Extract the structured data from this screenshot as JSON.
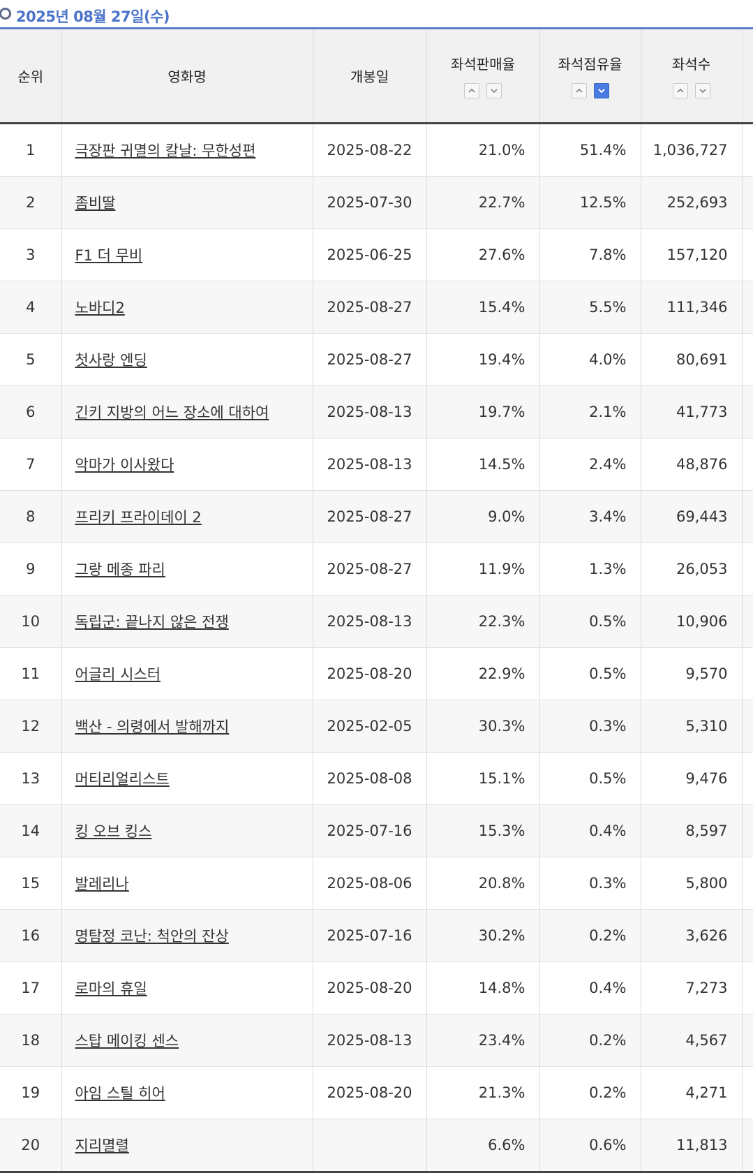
{
  "header": {
    "date": "2025년 08월 27일(수)"
  },
  "columns": {
    "rank": "순위",
    "title": "영화명",
    "open_date": "개봉일",
    "seat_sales_rate": "좌석판매율",
    "seat_share": "좌석점유율",
    "seats": "좌석수"
  },
  "sort_state": {
    "active_column": "seat_share",
    "active_direction": "desc"
  },
  "colors": {
    "accent": "#4a74c9",
    "active_sort": "#4a7be0"
  },
  "rows": [
    {
      "rank": "1",
      "title": "극장판 귀멸의 칼날: 무한성편",
      "open_date": "2025-08-22",
      "sales": "21.0%",
      "share": "51.4%",
      "seats": "1,036,727"
    },
    {
      "rank": "2",
      "title": "좀비딸",
      "open_date": "2025-07-30",
      "sales": "22.7%",
      "share": "12.5%",
      "seats": "252,693"
    },
    {
      "rank": "3",
      "title": "F1 더 무비",
      "open_date": "2025-06-25",
      "sales": "27.6%",
      "share": "7.8%",
      "seats": "157,120"
    },
    {
      "rank": "4",
      "title": "노바디2",
      "open_date": "2025-08-27",
      "sales": "15.4%",
      "share": "5.5%",
      "seats": "111,346"
    },
    {
      "rank": "5",
      "title": "첫사랑 엔딩",
      "open_date": "2025-08-27",
      "sales": "19.4%",
      "share": "4.0%",
      "seats": "80,691"
    },
    {
      "rank": "6",
      "title": "긴키 지방의 어느 장소에 대하여",
      "open_date": "2025-08-13",
      "sales": "19.7%",
      "share": "2.1%",
      "seats": "41,773"
    },
    {
      "rank": "7",
      "title": "악마가 이사왔다",
      "open_date": "2025-08-13",
      "sales": "14.5%",
      "share": "2.4%",
      "seats": "48,876"
    },
    {
      "rank": "8",
      "title": "프리키 프라이데이 2",
      "open_date": "2025-08-27",
      "sales": "9.0%",
      "share": "3.4%",
      "seats": "69,443"
    },
    {
      "rank": "9",
      "title": "그랑 메종 파리",
      "open_date": "2025-08-27",
      "sales": "11.9%",
      "share": "1.3%",
      "seats": "26,053"
    },
    {
      "rank": "10",
      "title": "독립군: 끝나지 않은 전쟁",
      "open_date": "2025-08-13",
      "sales": "22.3%",
      "share": "0.5%",
      "seats": "10,906"
    },
    {
      "rank": "11",
      "title": "어글리 시스터",
      "open_date": "2025-08-20",
      "sales": "22.9%",
      "share": "0.5%",
      "seats": "9,570"
    },
    {
      "rank": "12",
      "title": "백산 - 의령에서 발해까지",
      "open_date": "2025-02-05",
      "sales": "30.3%",
      "share": "0.3%",
      "seats": "5,310"
    },
    {
      "rank": "13",
      "title": "머티리얼리스트",
      "open_date": "2025-08-08",
      "sales": "15.1%",
      "share": "0.5%",
      "seats": "9,476"
    },
    {
      "rank": "14",
      "title": "킹 오브 킹스",
      "open_date": "2025-07-16",
      "sales": "15.3%",
      "share": "0.4%",
      "seats": "8,597"
    },
    {
      "rank": "15",
      "title": "발레리나",
      "open_date": "2025-08-06",
      "sales": "20.8%",
      "share": "0.3%",
      "seats": "5,800"
    },
    {
      "rank": "16",
      "title": "명탐정 코난: 척안의 잔상",
      "open_date": "2025-07-16",
      "sales": "30.2%",
      "share": "0.2%",
      "seats": "3,626"
    },
    {
      "rank": "17",
      "title": "로마의 휴일",
      "open_date": "2025-08-20",
      "sales": "14.8%",
      "share": "0.4%",
      "seats": "7,273"
    },
    {
      "rank": "18",
      "title": "스탑 메이킹 센스",
      "open_date": "2025-08-13",
      "sales": "23.4%",
      "share": "0.2%",
      "seats": "4,567"
    },
    {
      "rank": "19",
      "title": "아임 스틸 히어",
      "open_date": "2025-08-20",
      "sales": "21.3%",
      "share": "0.2%",
      "seats": "4,271"
    },
    {
      "rank": "20",
      "title": "지리멸렬",
      "open_date": "",
      "sales": "6.6%",
      "share": "0.6%",
      "seats": "11,813"
    }
  ]
}
